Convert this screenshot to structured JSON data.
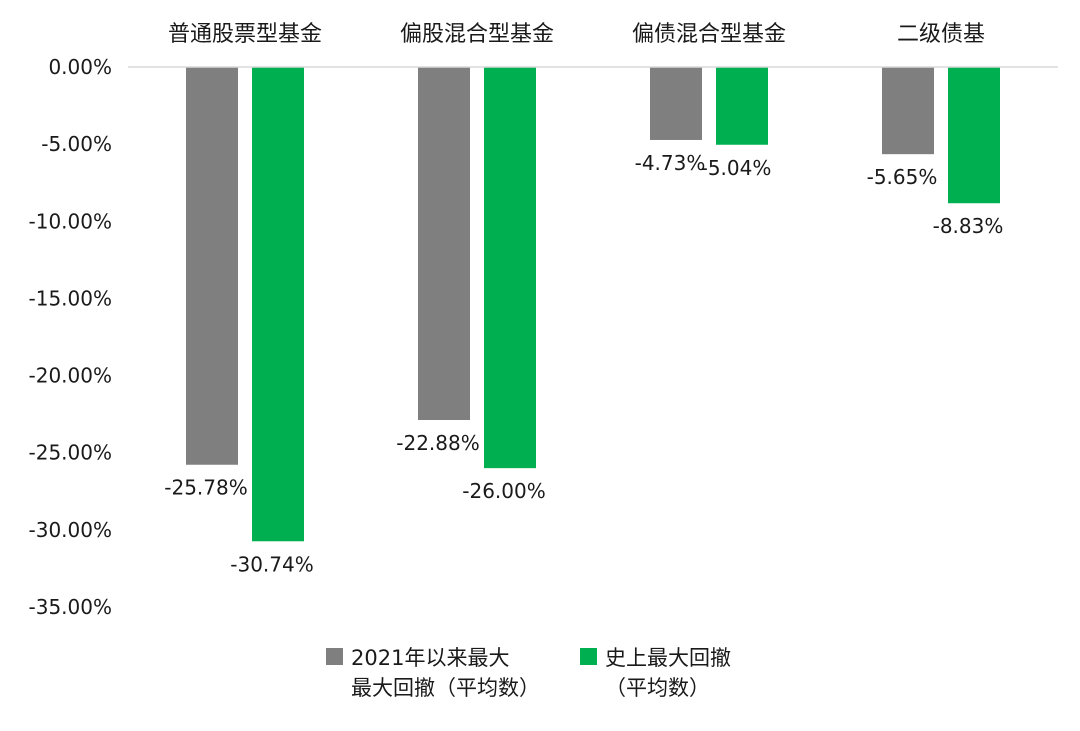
{
  "chart_data": {
    "type": "bar",
    "title": "",
    "xlabel": "",
    "ylabel": "",
    "categories": [
      "普通股票型基金",
      "偏股混合型基金",
      "偏债混合型基金",
      "二级债基"
    ],
    "series": [
      {
        "name_lines": [
          "2021年以来最大",
          "最大回撤（平均数）"
        ],
        "color": "#7f7f7f",
        "values": [
          -25.78,
          -22.88,
          -4.73,
          -5.65
        ],
        "labels": [
          "-25.78%",
          "-22.88%",
          "-4.73%",
          "-5.65%"
        ]
      },
      {
        "name_lines": [
          "史上最大回撤",
          "（平均数）"
        ],
        "color": "#00b050",
        "values": [
          -30.74,
          -26.0,
          -5.04,
          -8.83
        ],
        "labels": [
          "-30.74%",
          "-26.00%",
          "-5.04%",
          "-8.83%"
        ]
      }
    ],
    "ylim": [
      -35,
      0
    ],
    "yticks": [
      0,
      -5,
      -10,
      -15,
      -20,
      -25,
      -30,
      -35
    ],
    "ytick_labels": [
      "0.00%",
      "-5.00%",
      "-10.00%",
      "-15.00%",
      "-20.00%",
      "-25.00%",
      "-30.00%",
      "-35.00%"
    ],
    "grid": false,
    "category_axis_position": "top",
    "legend_position": "bottom-center"
  }
}
